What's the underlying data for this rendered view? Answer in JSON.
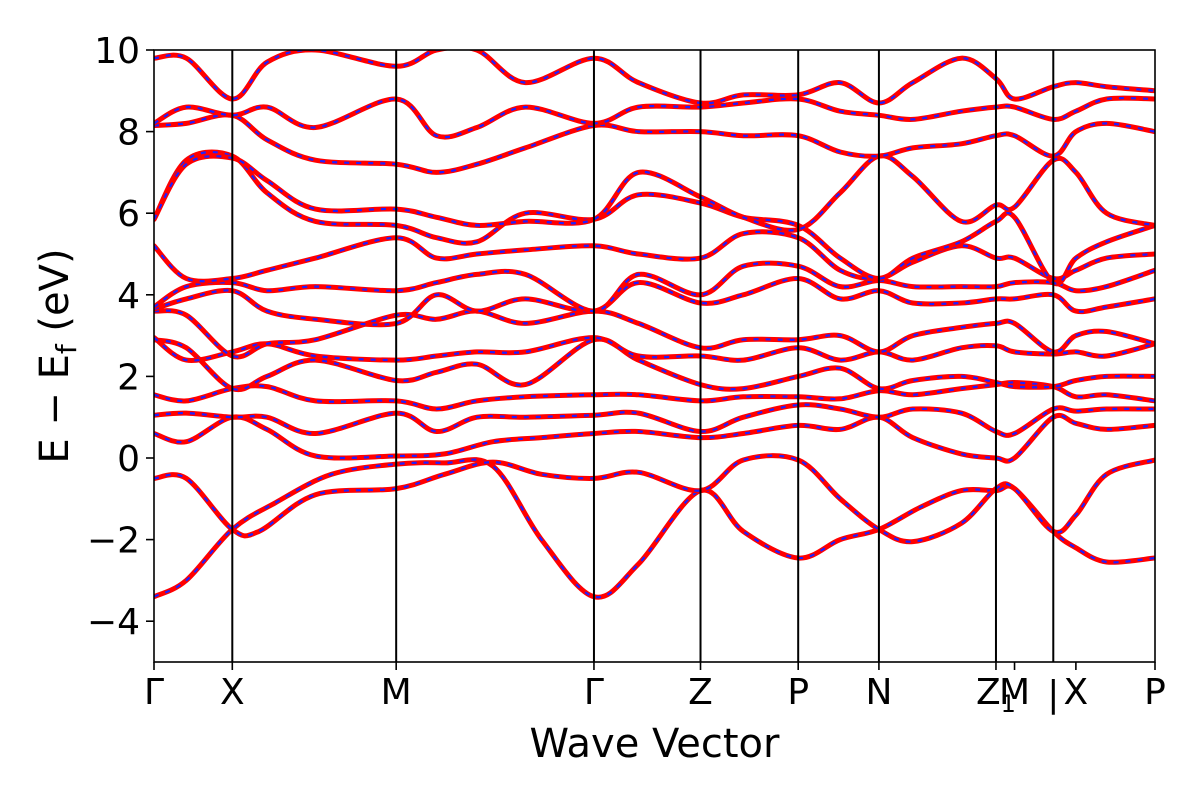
{
  "chart_data": {
    "type": "line",
    "title": "",
    "xlabel": "Wave Vector",
    "ylabel_parts": [
      "E − E",
      "f",
      " (eV)"
    ],
    "ylim": [
      -5,
      10
    ],
    "yticks": [
      -4,
      -2,
      0,
      2,
      4,
      6,
      8,
      10
    ],
    "ytick_labels": [
      "−4",
      "−2",
      "0",
      "2",
      "4",
      "6",
      "8",
      "10"
    ],
    "xlim": [
      0,
      12.4
    ],
    "kpoints": [
      {
        "label": "Γ",
        "x": 0
      },
      {
        "label": "X",
        "x": 0.97
      },
      {
        "label": "M",
        "x": 3.0
      },
      {
        "label": "Γ",
        "x": 5.45
      },
      {
        "label": "Z",
        "x": 6.77
      },
      {
        "label": "P",
        "x": 7.98
      },
      {
        "label": "N",
        "x": 8.98
      },
      {
        "label": "Z",
        "x": 10.43,
        "sub": "1"
      },
      {
        "label": "M",
        "x": 10.66
      },
      {
        "label": "X",
        "x": 11.42
      },
      {
        "label": "P",
        "x": 12.4
      }
    ],
    "kpath_dividers": [
      0.97,
      3.0,
      5.45,
      6.77,
      7.98,
      8.98,
      10.43,
      11.14
    ],
    "series_styles": [
      {
        "color": "#ff0000",
        "dash": "solid"
      },
      {
        "color": "#1f1fff",
        "dash": "dashed"
      }
    ],
    "bands": [
      {
        "x": [
          0,
          0.4,
          0.97,
          1.5,
          2.2,
          3.0,
          3.6,
          4.2,
          4.8,
          5.45,
          6.0,
          6.77,
          7.3,
          7.98,
          8.5,
          8.98,
          9.5,
          10.0,
          10.43,
          10.66,
          11.14,
          11.42,
          11.8,
          12.4
        ],
        "y": [
          -3.4,
          -3.0,
          -1.75,
          -1.1,
          -0.4,
          -0.15,
          -0.12,
          -0.2,
          -2.0,
          -3.4,
          -2.6,
          -0.8,
          -1.8,
          -2.45,
          -2.0,
          -1.75,
          -1.2,
          -0.8,
          -0.8,
          -0.75,
          -1.8,
          -2.2,
          -2.55,
          -2.45
        ]
      },
      {
        "x": [
          0,
          0.4,
          0.97,
          1.3,
          2.0,
          3.0,
          3.6,
          4.2,
          4.8,
          5.45,
          6.0,
          6.77,
          7.3,
          7.98,
          8.5,
          8.98,
          9.4,
          10.0,
          10.43,
          10.66,
          11.14,
          11.42,
          11.8,
          12.4
        ],
        "y": [
          -0.5,
          -0.5,
          -1.75,
          -1.8,
          -0.9,
          -0.75,
          -0.4,
          -0.1,
          -0.4,
          -0.5,
          -0.35,
          -0.8,
          -0.05,
          -0.05,
          -1.0,
          -1.75,
          -2.05,
          -1.6,
          -0.75,
          -0.75,
          -1.8,
          -1.4,
          -0.4,
          -0.05
        ]
      },
      {
        "x": [
          0,
          0.4,
          0.97,
          1.4,
          2.0,
          3.0,
          3.6,
          4.2,
          4.8,
          5.45,
          6.0,
          6.77,
          7.3,
          7.98,
          8.5,
          8.98,
          9.4,
          10.0,
          10.43,
          10.66,
          11.14,
          11.42,
          11.8,
          12.4
        ],
        "y": [
          0.6,
          0.4,
          1.0,
          0.7,
          0.05,
          0.05,
          0.1,
          0.4,
          0.5,
          0.6,
          0.65,
          0.5,
          0.6,
          0.8,
          0.7,
          1.0,
          0.5,
          0.1,
          0.0,
          0.0,
          1.0,
          0.85,
          0.7,
          0.8
        ]
      },
      {
        "x": [
          0,
          0.4,
          0.97,
          1.4,
          2.0,
          3.0,
          3.5,
          4.0,
          4.6,
          5.45,
          6.0,
          6.77,
          7.3,
          7.98,
          8.5,
          8.98,
          9.4,
          10.0,
          10.43,
          10.66,
          11.14,
          11.42,
          11.8,
          12.4
        ],
        "y": [
          1.05,
          1.1,
          1.0,
          1.0,
          0.6,
          1.1,
          0.65,
          1.0,
          1.0,
          1.05,
          1.1,
          0.65,
          1.0,
          1.3,
          1.2,
          1.0,
          1.2,
          1.1,
          0.65,
          0.6,
          1.2,
          1.15,
          1.2,
          1.2
        ]
      },
      {
        "x": [
          0,
          0.4,
          0.97,
          1.4,
          2.0,
          3.0,
          3.5,
          4.0,
          4.6,
          5.45,
          6.0,
          6.77,
          7.3,
          7.98,
          8.5,
          8.98,
          9.4,
          10.0,
          10.43,
          10.66,
          11.14,
          11.42,
          11.8,
          12.4
        ],
        "y": [
          1.55,
          1.4,
          1.7,
          1.75,
          1.4,
          1.4,
          1.2,
          1.4,
          1.5,
          1.55,
          1.55,
          1.4,
          1.5,
          1.5,
          1.45,
          1.65,
          1.55,
          1.7,
          1.8,
          1.85,
          1.75,
          1.5,
          1.55,
          1.4
        ]
      },
      {
        "x": [
          0,
          0.4,
          0.97,
          1.4,
          2.0,
          3.0,
          3.5,
          4.0,
          4.6,
          5.45,
          6.0,
          6.77,
          7.3,
          7.98,
          8.5,
          8.98,
          9.4,
          10.0,
          10.43,
          10.66,
          11.14,
          11.42,
          11.8,
          12.4
        ],
        "y": [
          2.9,
          2.7,
          1.7,
          2.0,
          2.4,
          1.9,
          2.1,
          2.3,
          1.8,
          2.9,
          2.4,
          1.8,
          1.7,
          2.0,
          2.2,
          1.7,
          1.9,
          2.0,
          1.85,
          1.75,
          1.75,
          1.9,
          2.0,
          2.0
        ]
      },
      {
        "x": [
          0,
          0.4,
          0.97,
          1.4,
          2.0,
          3.0,
          3.5,
          4.0,
          4.6,
          5.45,
          6.0,
          6.77,
          7.3,
          7.98,
          8.5,
          8.98,
          9.4,
          10.0,
          10.43,
          10.66,
          11.14,
          11.42,
          11.8,
          12.4
        ],
        "y": [
          2.95,
          2.4,
          2.6,
          2.8,
          2.5,
          2.4,
          2.5,
          2.6,
          2.6,
          2.95,
          2.5,
          2.5,
          2.4,
          2.7,
          2.4,
          2.6,
          2.4,
          2.7,
          2.75,
          2.6,
          2.55,
          2.6,
          2.5,
          2.8
        ]
      },
      {
        "x": [
          0,
          0.4,
          0.97,
          1.4,
          2.0,
          3.0,
          3.5,
          4.0,
          4.6,
          5.45,
          6.0,
          6.77,
          7.3,
          7.98,
          8.5,
          8.98,
          9.4,
          10.0,
          10.43,
          10.66,
          11.14,
          11.42,
          11.8,
          12.4
        ],
        "y": [
          3.6,
          3.5,
          2.5,
          2.8,
          2.9,
          3.5,
          3.4,
          3.6,
          3.3,
          3.6,
          3.3,
          2.7,
          2.9,
          2.9,
          3.0,
          2.6,
          3.0,
          3.2,
          3.3,
          3.3,
          2.6,
          3.0,
          3.1,
          2.8
        ]
      },
      {
        "x": [
          0,
          0.4,
          0.97,
          1.4,
          2.0,
          3.0,
          3.5,
          4.0,
          4.6,
          5.45,
          6.0,
          6.77,
          7.3,
          7.98,
          8.5,
          8.98,
          9.4,
          10.0,
          10.43,
          10.66,
          11.14,
          11.42,
          11.8,
          12.4
        ],
        "y": [
          3.65,
          3.9,
          4.1,
          3.6,
          3.4,
          3.3,
          4.0,
          3.6,
          3.9,
          3.6,
          4.3,
          3.8,
          4.0,
          4.4,
          3.9,
          4.1,
          3.8,
          3.8,
          3.9,
          3.9,
          4.0,
          3.6,
          3.7,
          3.9
        ]
      },
      {
        "x": [
          0,
          0.4,
          0.97,
          1.4,
          2.0,
          3.0,
          3.5,
          4.0,
          4.6,
          5.45,
          6.0,
          6.77,
          7.3,
          7.98,
          8.5,
          8.98,
          9.4,
          10.0,
          10.43,
          10.66,
          11.14,
          11.42,
          11.8,
          12.4
        ],
        "y": [
          3.7,
          4.2,
          4.3,
          4.1,
          4.2,
          4.1,
          4.3,
          4.5,
          4.5,
          3.6,
          4.5,
          4.0,
          4.7,
          4.7,
          4.2,
          4.35,
          4.2,
          4.2,
          4.2,
          4.3,
          4.3,
          4.1,
          4.2,
          4.6
        ]
      },
      {
        "x": [
          0,
          0.4,
          0.97,
          1.4,
          2.0,
          3.0,
          3.5,
          4.0,
          4.6,
          5.45,
          6.0,
          6.77,
          7.3,
          7.98,
          8.5,
          8.98,
          9.4,
          10.0,
          10.43,
          10.66,
          11.14,
          11.42,
          11.8,
          12.4
        ],
        "y": [
          5.2,
          4.4,
          4.4,
          4.6,
          4.9,
          5.4,
          4.9,
          5.0,
          5.1,
          5.2,
          5.0,
          4.9,
          5.5,
          5.4,
          4.6,
          4.4,
          4.8,
          5.2,
          4.9,
          4.9,
          4.4,
          4.6,
          4.9,
          5.0
        ]
      },
      {
        "x": [
          0,
          0.4,
          0.97,
          1.4,
          2.0,
          3.0,
          3.5,
          4.0,
          4.6,
          5.45,
          6.0,
          6.77,
          7.3,
          7.98,
          8.5,
          8.98,
          9.4,
          10.0,
          10.43,
          10.66,
          11.14,
          11.42,
          11.8,
          12.4
        ],
        "y": [
          5.85,
          7.3,
          7.4,
          6.5,
          5.8,
          5.7,
          5.4,
          5.3,
          6.0,
          5.85,
          6.45,
          6.25,
          5.9,
          5.7,
          4.9,
          4.4,
          4.9,
          5.3,
          5.8,
          5.9,
          4.3,
          4.9,
          5.3,
          5.7
        ]
      },
      {
        "x": [
          0,
          0.4,
          0.97,
          1.4,
          2.0,
          3.0,
          3.5,
          4.0,
          4.6,
          5.45,
          6.0,
          6.77,
          7.3,
          7.98,
          8.5,
          8.98,
          9.4,
          10.0,
          10.43,
          10.66,
          11.14,
          11.42,
          11.8,
          12.4
        ],
        "y": [
          5.85,
          7.2,
          7.35,
          6.8,
          6.1,
          6.1,
          5.9,
          5.7,
          5.8,
          5.85,
          7.0,
          6.4,
          5.9,
          5.6,
          6.5,
          7.4,
          6.9,
          5.8,
          6.2,
          6.15,
          7.3,
          7.0,
          6.0,
          5.7
        ]
      },
      {
        "x": [
          0,
          0.4,
          0.97,
          1.4,
          2.0,
          3.0,
          3.5,
          4.0,
          4.6,
          5.45,
          6.0,
          6.77,
          7.3,
          7.98,
          8.5,
          8.98,
          9.4,
          10.0,
          10.43,
          10.66,
          11.14,
          11.42,
          11.8,
          12.4
        ],
        "y": [
          8.15,
          8.2,
          8.4,
          7.8,
          7.3,
          7.2,
          7.0,
          7.2,
          7.6,
          8.15,
          8.0,
          8.0,
          7.9,
          7.9,
          7.5,
          7.4,
          7.6,
          7.7,
          7.9,
          7.9,
          7.4,
          8.0,
          8.2,
          8.0
        ]
      },
      {
        "x": [
          0,
          0.4,
          0.97,
          1.4,
          2.0,
          3.0,
          3.5,
          4.0,
          4.6,
          5.45,
          6.0,
          6.77,
          7.3,
          7.98,
          8.5,
          8.98,
          9.4,
          10.0,
          10.43,
          10.66,
          11.14,
          11.42,
          11.8,
          12.4
        ],
        "y": [
          8.2,
          8.6,
          8.4,
          8.6,
          8.1,
          8.8,
          7.9,
          8.1,
          8.6,
          8.2,
          8.6,
          8.6,
          8.7,
          8.8,
          8.5,
          8.4,
          8.3,
          8.5,
          8.6,
          8.6,
          8.3,
          8.5,
          8.8,
          8.8
        ]
      },
      {
        "x": [
          0,
          0.4,
          0.97,
          1.4,
          2.0,
          3.0,
          3.5,
          4.0,
          4.6,
          5.45,
          6.0,
          6.77,
          7.3,
          7.98,
          8.5,
          8.98,
          9.4,
          10.0,
          10.43,
          10.66,
          11.14,
          11.42,
          11.8,
          12.4
        ],
        "y": [
          9.8,
          9.8,
          8.8,
          9.7,
          10.0,
          9.6,
          10.0,
          10.0,
          9.2,
          9.8,
          9.2,
          8.7,
          8.9,
          8.9,
          9.2,
          8.7,
          9.2,
          9.8,
          9.3,
          8.8,
          9.1,
          9.2,
          9.1,
          9.0
        ]
      }
    ]
  }
}
